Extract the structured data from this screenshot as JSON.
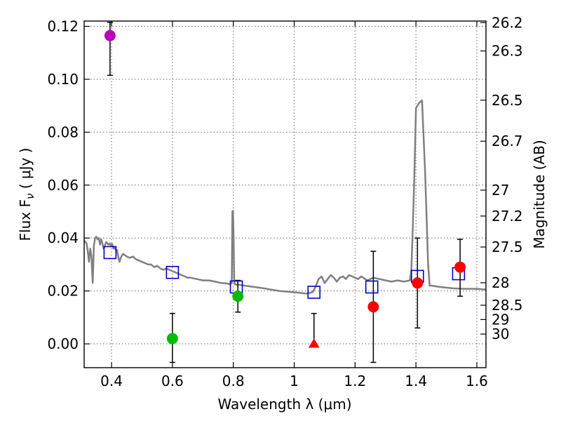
{
  "chart_data": {
    "type": "scatter",
    "xlabel": "Wavelength  λ (μm)",
    "ylabel": "Flux  F",
    "ylabel_sub": "ν",
    "ylabel_unit": "  ( μJy )",
    "y2label": "Magnitude (AB)",
    "xlim": [
      0.31,
      1.63
    ],
    "ylim": [
      -0.009,
      0.122
    ],
    "grid": true,
    "x_ticks": [
      0.4,
      0.6,
      0.8,
      1.0,
      1.2,
      1.4,
      1.6
    ],
    "x_tick_labels": [
      "0.4",
      "0.6",
      "0.8",
      "1",
      "1.2",
      "1.4",
      "1.6"
    ],
    "y_ticks": [
      0.0,
      0.02,
      0.04,
      0.06,
      0.08,
      0.1,
      0.12
    ],
    "y_tick_labels": [
      "0.00",
      "0.02",
      "0.04",
      "0.06",
      "0.08",
      "0.10",
      "0.12"
    ],
    "magnitude_ticks": [
      {
        "label": "26.2",
        "flux": 0.1214
      },
      {
        "label": "26.3",
        "flux": 0.1107
      },
      {
        "label": "26.5",
        "flux": 0.0921
      },
      {
        "label": "26.7",
        "flux": 0.0766
      },
      {
        "label": "27",
        "flux": 0.0581
      },
      {
        "label": "27.2",
        "flux": 0.0483
      },
      {
        "label": "27.5",
        "flux": 0.0366
      },
      {
        "label": "28",
        "flux": 0.0231
      },
      {
        "label": "28.5",
        "flux": 0.0146
      },
      {
        "label": "29",
        "flux": 0.0092
      },
      {
        "label": "30",
        "flux": 0.0037
      }
    ],
    "series": [
      {
        "name": "model_spectrum",
        "kind": "line",
        "color": "#808080",
        "x": [
          0.31,
          0.318,
          0.322,
          0.326,
          0.33,
          0.334,
          0.338,
          0.342,
          0.346,
          0.35,
          0.354,
          0.358,
          0.362,
          0.366,
          0.37,
          0.374,
          0.378,
          0.382,
          0.386,
          0.39,
          0.394,
          0.398,
          0.402,
          0.406,
          0.41,
          0.414,
          0.418,
          0.422,
          0.426,
          0.432,
          0.438,
          0.444,
          0.45,
          0.46,
          0.47,
          0.48,
          0.49,
          0.5,
          0.51,
          0.52,
          0.53,
          0.54,
          0.55,
          0.56,
          0.57,
          0.58,
          0.59,
          0.6,
          0.61,
          0.62,
          0.63,
          0.64,
          0.65,
          0.66,
          0.68,
          0.7,
          0.72,
          0.74,
          0.76,
          0.78,
          0.79,
          0.795,
          0.797,
          0.799,
          0.801,
          0.803,
          0.805,
          0.82,
          0.85,
          0.9,
          0.95,
          1.0,
          1.04,
          1.06,
          1.07,
          1.08,
          1.09,
          1.1,
          1.11,
          1.12,
          1.13,
          1.14,
          1.15,
          1.16,
          1.17,
          1.18,
          1.19,
          1.2,
          1.21,
          1.22,
          1.24,
          1.26,
          1.28,
          1.3,
          1.32,
          1.34,
          1.36,
          1.38,
          1.385,
          1.39,
          1.395,
          1.4,
          1.405,
          1.41,
          1.42,
          1.43,
          1.44,
          1.445,
          1.45,
          1.48,
          1.52,
          1.56,
          1.6,
          1.63
        ],
        "y": [
          0.039,
          0.038,
          0.035,
          0.031,
          0.036,
          0.033,
          0.023,
          0.037,
          0.04,
          0.0405,
          0.0395,
          0.04,
          0.0375,
          0.0395,
          0.038,
          0.036,
          0.037,
          0.0385,
          0.038,
          0.0375,
          0.038,
          0.037,
          0.0378,
          0.036,
          0.0365,
          0.0355,
          0.0355,
          0.033,
          0.031,
          0.033,
          0.034,
          0.0335,
          0.033,
          0.0325,
          0.033,
          0.032,
          0.0315,
          0.031,
          0.0305,
          0.03,
          0.03,
          0.029,
          0.0295,
          0.0285,
          0.028,
          0.0285,
          0.028,
          0.0275,
          0.027,
          0.0265,
          0.026,
          0.0255,
          0.025,
          0.025,
          0.0245,
          0.024,
          0.024,
          0.0235,
          0.023,
          0.0228,
          0.0225,
          0.023,
          0.05,
          0.0503,
          0.04,
          0.024,
          0.0225,
          0.0223,
          0.0218,
          0.021,
          0.02,
          0.0195,
          0.019,
          0.0195,
          0.0215,
          0.0245,
          0.0255,
          0.023,
          0.0245,
          0.026,
          0.025,
          0.0235,
          0.025,
          0.0255,
          0.0245,
          0.026,
          0.0255,
          0.025,
          0.0245,
          0.0255,
          0.024,
          0.025,
          0.0245,
          0.024,
          0.0235,
          0.024,
          0.0235,
          0.024,
          0.028,
          0.045,
          0.065,
          0.089,
          0.09,
          0.091,
          0.092,
          0.065,
          0.03,
          0.022,
          0.022,
          0.0215,
          0.021,
          0.0208,
          0.0208,
          0.0205
        ]
      },
      {
        "name": "model_bandpass",
        "kind": "open-square",
        "color": "#0000cc",
        "x": [
          0.395,
          0.6,
          0.81,
          1.065,
          1.255,
          1.405,
          1.54
        ],
        "y": [
          0.0345,
          0.027,
          0.0215,
          0.0195,
          0.0215,
          0.0255,
          0.0265
        ]
      },
      {
        "name": "observed_flux",
        "kind": "filled-circle",
        "x": [
          0.395,
          0.6,
          0.815,
          1.065,
          1.26,
          1.405,
          1.545
        ],
        "y": [
          0.1165,
          0.002,
          0.018,
          0.0,
          0.014,
          0.023,
          0.029
        ],
        "err_low": [
          0.1015,
          -0.007,
          0.012,
          null,
          -0.007,
          0.006,
          0.018
        ],
        "err_high": [
          0.1215,
          0.0115,
          0.024,
          0.0115,
          0.035,
          0.04,
          0.0395
        ],
        "colors": [
          "#bb00bb",
          "#00bb00",
          "#00bb00",
          "#ff0000",
          "#ff0000",
          "#ff0000",
          "#ff0000"
        ],
        "markers": [
          "circle",
          "circle",
          "circle",
          "triangle",
          "circle",
          "circle",
          "circle"
        ]
      }
    ]
  }
}
